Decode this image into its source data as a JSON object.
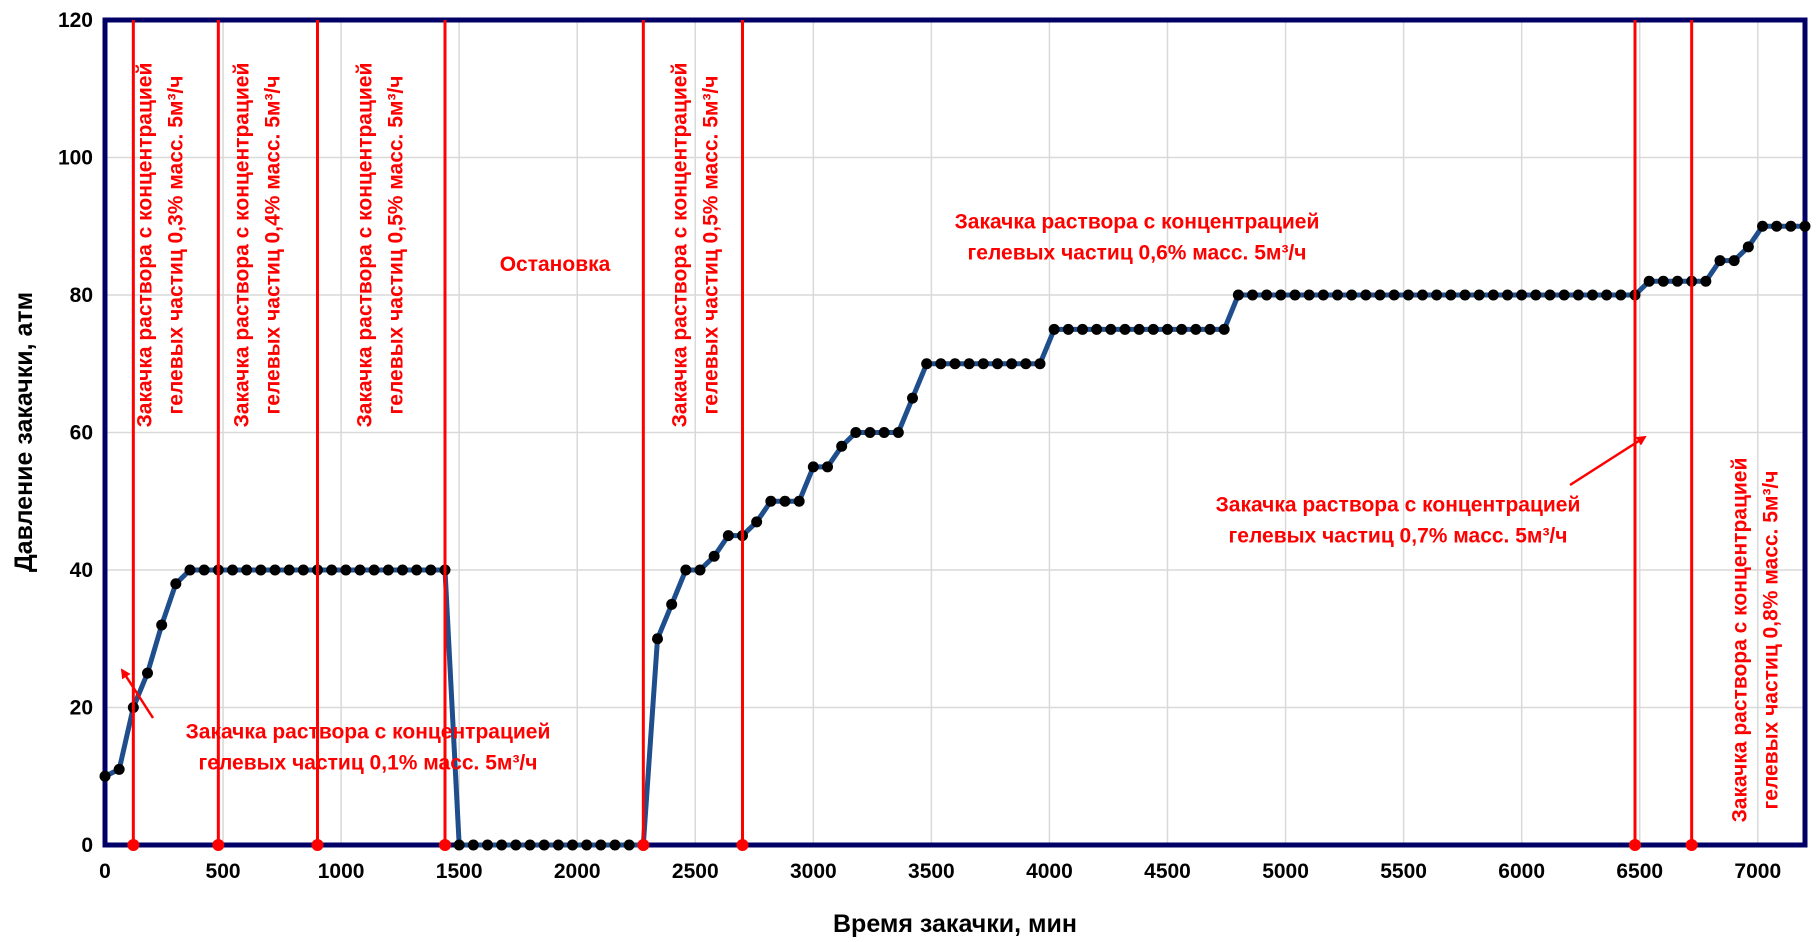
{
  "chart_data": {
    "type": "line",
    "title": "",
    "xlabel": "Время закачки, мин",
    "ylabel": "Давление закачки, атм",
    "xlim": [
      0,
      7200
    ],
    "ylim": [
      0,
      120
    ],
    "x_ticks": [
      0,
      500,
      1000,
      1500,
      2000,
      2500,
      3000,
      3500,
      4000,
      4500,
      5000,
      5500,
      6000,
      6500,
      7000
    ],
    "y_ticks": [
      0,
      20,
      40,
      60,
      80,
      100,
      120
    ],
    "grid": true,
    "legend": "none",
    "colors": {
      "series": "#1f4e8c",
      "marker": "#000000",
      "annotation": "#ff0000",
      "plot_border": "#000066"
    },
    "series": [
      {
        "x": [
          0,
          60,
          120,
          180,
          240,
          300,
          360,
          420,
          480,
          540,
          600,
          660,
          720,
          780,
          840,
          900,
          960,
          1020,
          1080,
          1140,
          1200,
          1260,
          1320,
          1380,
          1440,
          1500,
          1560,
          1620,
          1680,
          1740,
          1800,
          1860,
          1920,
          1980,
          2040,
          2100,
          2160,
          2220,
          2280,
          2340,
          2400,
          2460,
          2520,
          2580,
          2640,
          2700,
          2760,
          2820,
          2880,
          2940,
          3000,
          3060,
          3120,
          3180,
          3240,
          3300,
          3360,
          3420,
          3480,
          3540,
          3600,
          3660,
          3720,
          3780,
          3840,
          3900,
          3960,
          4020,
          4080,
          4140,
          4200,
          4260,
          4320,
          4380,
          4440,
          4500,
          4560,
          4620,
          4680,
          4740,
          4800,
          4860,
          4920,
          4980,
          5040,
          5100,
          5160,
          5220,
          5280,
          5340,
          5400,
          5460,
          5520,
          5580,
          5640,
          5700,
          5760,
          5820,
          5880,
          5940,
          6000,
          6060,
          6120,
          6180,
          6240,
          6300,
          6360,
          6420,
          6480,
          6540,
          6600,
          6660,
          6720,
          6780,
          6840,
          6900,
          6960,
          7020,
          7080,
          7140,
          7200
        ],
        "y": [
          10,
          11,
          20,
          25,
          32,
          38,
          40,
          40,
          40,
          40,
          40,
          40,
          40,
          40,
          40,
          40,
          40,
          40,
          40,
          40,
          40,
          40,
          40,
          40,
          40,
          0,
          0,
          0,
          0,
          0,
          0,
          0,
          0,
          0,
          0,
          0,
          0,
          0,
          0,
          30,
          35,
          40,
          40,
          42,
          45,
          45,
          47,
          50,
          50,
          50,
          55,
          55,
          58,
          60,
          60,
          60,
          60,
          65,
          70,
          70,
          70,
          70,
          70,
          70,
          70,
          70,
          70,
          75,
          75,
          75,
          75,
          75,
          75,
          75,
          75,
          75,
          75,
          75,
          75,
          75,
          80,
          80,
          80,
          80,
          80,
          80,
          80,
          80,
          80,
          80,
          80,
          80,
          80,
          80,
          80,
          80,
          80,
          80,
          80,
          80,
          80,
          80,
          80,
          80,
          80,
          80,
          80,
          80,
          80,
          82,
          82,
          82,
          82,
          82,
          85,
          85,
          87,
          90,
          90,
          90,
          90
        ]
      }
    ],
    "stage_lines": [
      120,
      480,
      900,
      1440,
      2280,
      2700,
      6480,
      6720
    ],
    "annotations": [
      {
        "lines": [
          "Закачка раствора с концентрацией",
          "гелевых частиц 0,1% масс.  5м³/ч"
        ],
        "orientation": "horizontal"
      },
      {
        "lines": [
          "Закачка раствора с концентрацией",
          "гелевых частиц 0,3% масс.  5м³/ч"
        ],
        "orientation": "vertical"
      },
      {
        "lines": [
          "Закачка раствора с концентрацией",
          "гелевых частиц 0,4% масс.  5м³/ч"
        ],
        "orientation": "vertical"
      },
      {
        "lines": [
          "Закачка раствора с концентрацией",
          "гелевых частиц 0,5% масс.  5м³/ч"
        ],
        "orientation": "vertical"
      },
      {
        "lines": [
          "Остановка"
        ],
        "orientation": "horizontal"
      },
      {
        "lines": [
          "Закачка раствора с концентрацией",
          "гелевых частиц 0,5% масс.  5м³/ч"
        ],
        "orientation": "vertical"
      },
      {
        "lines": [
          "Закачка раствора с концентрацией",
          "гелевых частиц 0,6% масс.  5м³/ч"
        ],
        "orientation": "horizontal"
      },
      {
        "lines": [
          "Закачка раствора с концентрацией",
          "гелевых частиц 0,7% масс.  5м³/ч"
        ],
        "orientation": "horizontal"
      },
      {
        "lines": [
          "Закачка раствора с концентрацией",
          "гелевых частиц 0,8% масс.  5м³/ч"
        ],
        "orientation": "vertical"
      }
    ]
  }
}
